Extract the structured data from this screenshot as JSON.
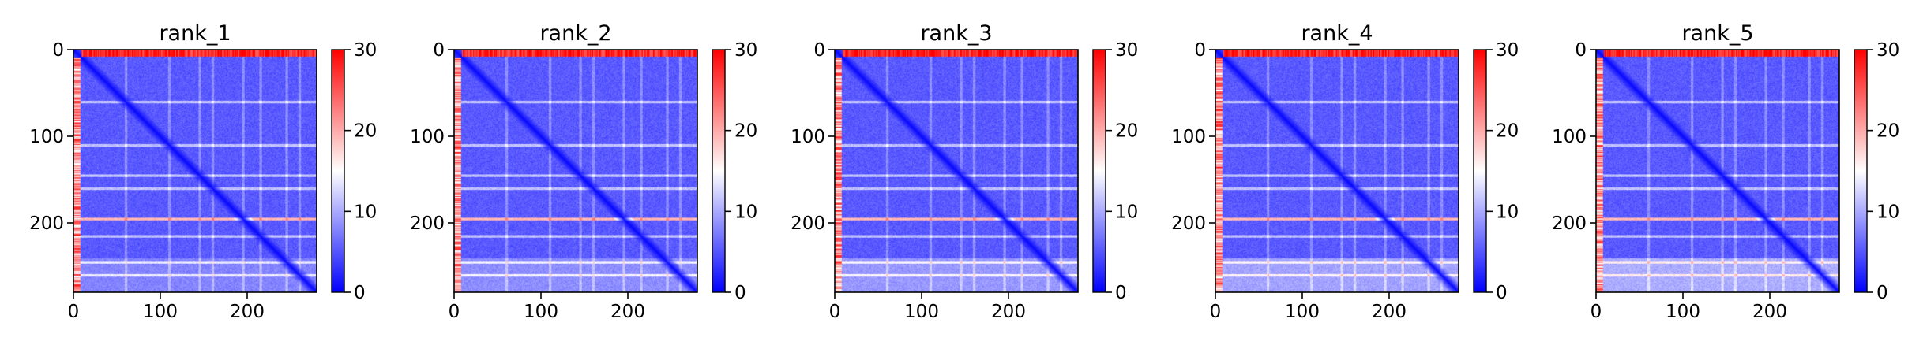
{
  "chart_data": [
    {
      "type": "heatmap",
      "title": "rank_1",
      "xlim": [
        0,
        280
      ],
      "ylim": [
        0,
        280
      ],
      "xticks": [
        0,
        100,
        200
      ],
      "yticks": [
        0,
        100,
        200
      ],
      "colorbar": {
        "range": [
          0,
          30
        ],
        "ticks": [
          0,
          10,
          20,
          30
        ],
        "colormap": "bwr"
      },
      "features": {
        "top_band_rows": "0-8 high (~30)",
        "left_band_cols": "0-8 high",
        "horizontal_light_rows": [
          60,
          110,
          145,
          160,
          195,
          215,
          245,
          260
        ],
        "diagonal": "low (~0)",
        "background": "~5"
      }
    },
    {
      "type": "heatmap",
      "title": "rank_2",
      "xlim": [
        0,
        280
      ],
      "ylim": [
        0,
        280
      ],
      "xticks": [
        0,
        100,
        200
      ],
      "yticks": [
        0,
        100,
        200
      ],
      "colorbar": {
        "range": [
          0,
          30
        ],
        "ticks": [
          0,
          10,
          20,
          30
        ],
        "colormap": "bwr"
      },
      "features": {
        "top_band_rows": "0-8 high (~30)",
        "left_band_cols": "0-8 high",
        "horizontal_light_rows": [
          60,
          110,
          145,
          160,
          195,
          215,
          245,
          260
        ],
        "diagonal": "low (~0)",
        "background": "~5"
      }
    },
    {
      "type": "heatmap",
      "title": "rank_3",
      "xlim": [
        0,
        280
      ],
      "ylim": [
        0,
        280
      ],
      "xticks": [
        0,
        100,
        200
      ],
      "yticks": [
        0,
        100,
        200
      ],
      "colorbar": {
        "range": [
          0,
          30
        ],
        "ticks": [
          0,
          10,
          20,
          30
        ],
        "colormap": "bwr"
      },
      "features": {
        "top_band_rows": "0-8 high (~30)",
        "left_band_cols": "0-8 high",
        "horizontal_light_rows": [
          60,
          110,
          145,
          160,
          195,
          215,
          245,
          260
        ],
        "diagonal": "low (~0)",
        "background": "~5"
      }
    },
    {
      "type": "heatmap",
      "title": "rank_4",
      "xlim": [
        0,
        280
      ],
      "ylim": [
        0,
        280
      ],
      "xticks": [
        0,
        100,
        200
      ],
      "yticks": [
        0,
        100,
        200
      ],
      "colorbar": {
        "range": [
          0,
          30
        ],
        "ticks": [
          0,
          10,
          20,
          30
        ],
        "colormap": "bwr"
      },
      "features": {
        "top_band_rows": "0-8 high (~30)",
        "left_band_cols": "0-8 high",
        "horizontal_light_rows": [
          60,
          110,
          145,
          160,
          195,
          215,
          245,
          260
        ],
        "diagonal": "low (~0)",
        "background": "~5"
      }
    },
    {
      "type": "heatmap",
      "title": "rank_5",
      "xlim": [
        0,
        280
      ],
      "ylim": [
        0,
        280
      ],
      "xticks": [
        0,
        100,
        200
      ],
      "yticks": [
        0,
        100,
        200
      ],
      "colorbar": {
        "range": [
          0,
          30
        ],
        "ticks": [
          0,
          10,
          20,
          30
        ],
        "colormap": "bwr"
      },
      "features": {
        "top_band_rows": "0-8 high (~30)",
        "left_band_cols": "0-8 high",
        "horizontal_light_rows": [
          60,
          110,
          145,
          160,
          195,
          215,
          245,
          260
        ],
        "diagonal": "low (~0)",
        "background": "~5"
      }
    }
  ]
}
